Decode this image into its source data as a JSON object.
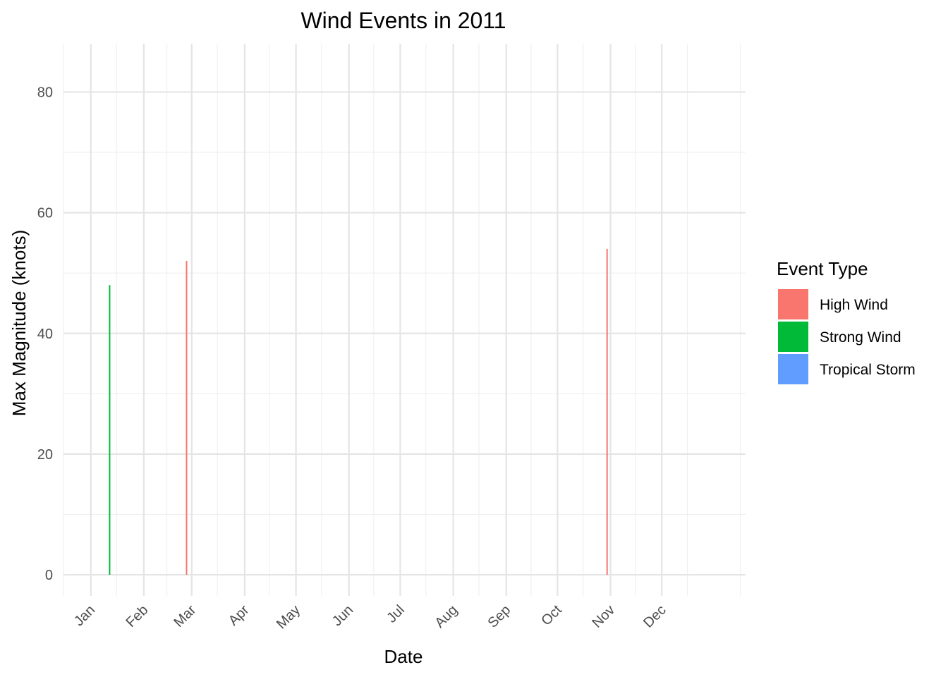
{
  "chart_data": {
    "type": "bar",
    "title": "Wind Events in 2011",
    "xlabel": "Date",
    "ylabel": "Max Magnitude (knots)",
    "x_ticks": [
      "Jan",
      "Feb",
      "Mar",
      "Apr",
      "May",
      "Jun",
      "Jul",
      "Aug",
      "Sep",
      "Oct",
      "Nov",
      "Dec"
    ],
    "y_ticks": [
      0,
      20,
      40,
      60,
      80
    ],
    "ylim": [
      -3.5,
      88
    ],
    "xlim": [
      "2010-12-16",
      "2012-01-19"
    ],
    "grid": true,
    "legend": {
      "title": "Event Type",
      "placement": "right",
      "entries": [
        {
          "name": "High Wind",
          "color": "#F8766D"
        },
        {
          "name": "Strong Wind",
          "color": "#00BA38"
        },
        {
          "name": "Tropical Storm",
          "color": "#619CFF"
        }
      ]
    },
    "series": [
      {
        "name": "High Wind",
        "color": "#F8766D",
        "points": [
          {
            "x": "2011-02-26",
            "y": 52
          },
          {
            "x": "2011-10-30",
            "y": 54
          }
        ]
      },
      {
        "name": "Strong Wind",
        "color": "#00BA38",
        "points": [
          {
            "x": "2011-01-12",
            "y": 48
          }
        ]
      },
      {
        "name": "Tropical Storm",
        "color": "#619CFF",
        "points": []
      }
    ]
  }
}
